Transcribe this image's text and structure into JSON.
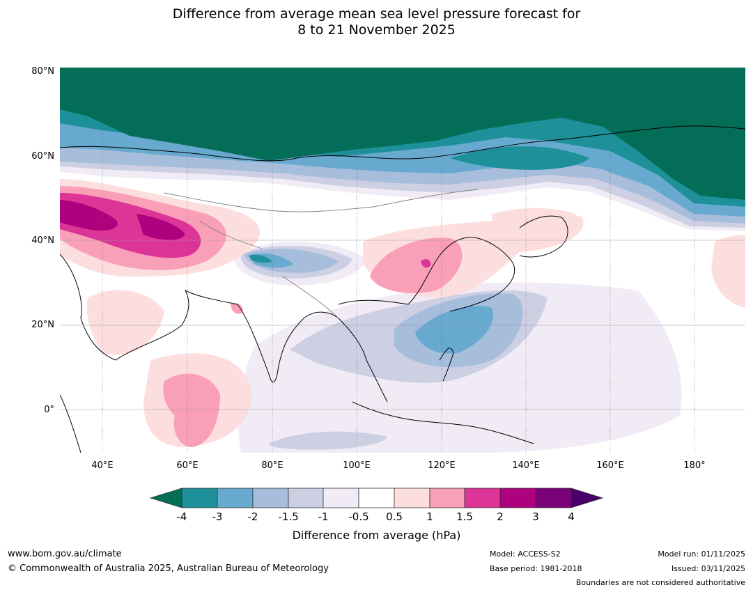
{
  "title_line1": "Difference from average mean sea level pressure forecast for",
  "title_line2": "8 to 21 November 2025",
  "axes": {
    "lat_labels": [
      "80°N",
      "60°N",
      "40°N",
      "20°N",
      "0°"
    ],
    "lon_labels": [
      "40°E",
      "60°E",
      "80°E",
      "100°E",
      "120°E",
      "140°E",
      "160°E",
      "180°"
    ]
  },
  "colorbar": {
    "ticks": [
      "-4",
      "-3",
      "-2",
      "-1.5",
      "-1",
      "-0.5",
      "0.5",
      "1",
      "1.5",
      "2",
      "3",
      "4"
    ],
    "label": "Difference from average (hPa)",
    "colors": {
      "below_min": "#046d58",
      "neg4_neg3": "#1d9099",
      "neg3_neg2": "#67a9cf",
      "neg2_neg15": "#a6bddb",
      "neg15_neg1": "#cdd0e3",
      "neg1_neg05": "#f1ebf5",
      "neutral": "#ffffff",
      "pos05_1": "#fddede",
      "pos1_15": "#f99fb8",
      "pos15_2": "#dd3497",
      "pos2_3": "#ae017e",
      "pos3_4": "#7a0177",
      "above_max": "#49006a"
    }
  },
  "footer": {
    "website": "www.bom.gov.au/climate",
    "copyright": "© Commonwealth of Australia 2025, Australian Bureau of Meteorology",
    "model": "Model: ACCESS-S2",
    "base_period": "Base period: 1981-2018",
    "model_run": "Model run: 01/11/2025",
    "issued": "Issued: 03/11/2025",
    "disclaimer": "Boundaries are not considered authoritative"
  }
}
